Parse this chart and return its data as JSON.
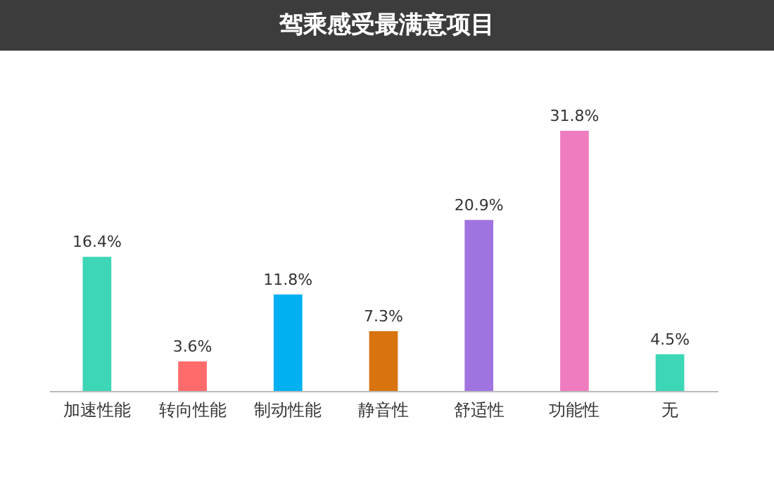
{
  "chart_data": {
    "type": "bar",
    "title": "驾乘感受最满意项目",
    "categories": [
      "加速性能",
      "转向性能",
      "制动性能",
      "静音性",
      "舒适性",
      "功能性",
      "无"
    ],
    "values": [
      16.4,
      3.6,
      11.8,
      7.3,
      20.9,
      31.8,
      4.5
    ],
    "value_labels": [
      "16.4%",
      "3.6%",
      "11.8%",
      "7.3%",
      "20.9%",
      "31.8%",
      "4.5%"
    ],
    "colors": [
      "#3dd6b7",
      "#ff6b6b",
      "#00b0f0",
      "#d9730d",
      "#a074e0",
      "#f07cc0",
      "#3dd6b7"
    ],
    "tick_labels": "x"
  }
}
